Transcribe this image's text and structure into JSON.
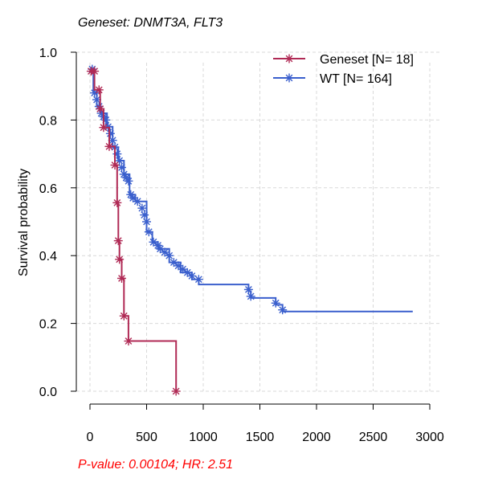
{
  "chart_data": {
    "type": "line",
    "subtype": "kaplan-meier",
    "title": "Geneset: DNMT3A, FLT3",
    "xlabel": "",
    "ylabel": "Survival probability",
    "xlim": [
      0,
      3000
    ],
    "ylim": [
      0,
      1
    ],
    "x_ticks": [
      0,
      500,
      1000,
      1500,
      2000,
      2500,
      3000
    ],
    "y_ticks": [
      0.0,
      0.2,
      0.4,
      0.6,
      0.8,
      1.0
    ],
    "y_tick_labels": [
      "0.0",
      "0.2",
      "0.4",
      "0.6",
      "0.8",
      "1.0"
    ],
    "grid": true,
    "legend_position": "top-right",
    "footnote": "P-value: 0.00104; HR: 2.51",
    "series": [
      {
        "name": "Geneset [N= 18]",
        "color": "#b02a55",
        "x": [
          0,
          40,
          40,
          90,
          90,
          120,
          120,
          170,
          170,
          220,
          220,
          240,
          240,
          250,
          250,
          260,
          260,
          280,
          280,
          300,
          300,
          340,
          340,
          760,
          760
        ],
        "y": [
          0.944,
          0.944,
          0.889,
          0.889,
          0.833,
          0.833,
          0.778,
          0.778,
          0.722,
          0.722,
          0.667,
          0.667,
          0.556,
          0.556,
          0.444,
          0.444,
          0.389,
          0.389,
          0.333,
          0.333,
          0.222,
          0.222,
          0.148,
          0.148,
          0.0
        ],
        "censor_x": [
          10,
          40,
          80,
          90,
          120,
          170,
          220,
          240,
          250,
          260,
          280,
          300,
          340,
          760
        ],
        "censor_y": [
          0.944,
          0.944,
          0.889,
          0.833,
          0.778,
          0.722,
          0.667,
          0.556,
          0.444,
          0.389,
          0.333,
          0.222,
          0.148,
          0.0
        ]
      },
      {
        "name": "WT [N= 164]",
        "color": "#3a5fcd",
        "x": [
          0,
          30,
          30,
          60,
          60,
          100,
          100,
          150,
          150,
          200,
          200,
          250,
          250,
          300,
          300,
          350,
          350,
          400,
          400,
          500,
          500,
          550,
          550,
          600,
          600,
          700,
          700,
          800,
          800,
          900,
          900,
          960,
          960,
          1400,
          1400,
          1420,
          1420,
          1640,
          1640,
          1700,
          1700,
          2850
        ],
        "y": [
          0.95,
          0.95,
          0.88,
          0.88,
          0.84,
          0.84,
          0.82,
          0.82,
          0.78,
          0.78,
          0.72,
          0.72,
          0.68,
          0.68,
          0.64,
          0.64,
          0.58,
          0.58,
          0.56,
          0.56,
          0.47,
          0.47,
          0.44,
          0.44,
          0.42,
          0.42,
          0.38,
          0.38,
          0.35,
          0.35,
          0.33,
          0.33,
          0.315,
          0.315,
          0.295,
          0.295,
          0.275,
          0.275,
          0.255,
          0.255,
          0.235,
          0.235
        ],
        "censor_x": [
          20,
          40,
          60,
          80,
          100,
          120,
          140,
          160,
          180,
          200,
          220,
          240,
          260,
          280,
          300,
          320,
          340,
          360,
          380,
          420,
          460,
          480,
          500,
          520,
          560,
          600,
          620,
          660,
          700,
          740,
          780,
          820,
          860,
          900,
          960,
          1400,
          1420,
          1640,
          1700
        ],
        "censor_y": [
          0.95,
          0.88,
          0.86,
          0.84,
          0.82,
          0.81,
          0.8,
          0.78,
          0.76,
          0.74,
          0.72,
          0.7,
          0.68,
          0.66,
          0.64,
          0.63,
          0.62,
          0.58,
          0.57,
          0.56,
          0.54,
          0.52,
          0.5,
          0.47,
          0.44,
          0.43,
          0.42,
          0.41,
          0.4,
          0.38,
          0.37,
          0.36,
          0.35,
          0.34,
          0.33,
          0.3,
          0.28,
          0.26,
          0.24
        ]
      }
    ]
  }
}
